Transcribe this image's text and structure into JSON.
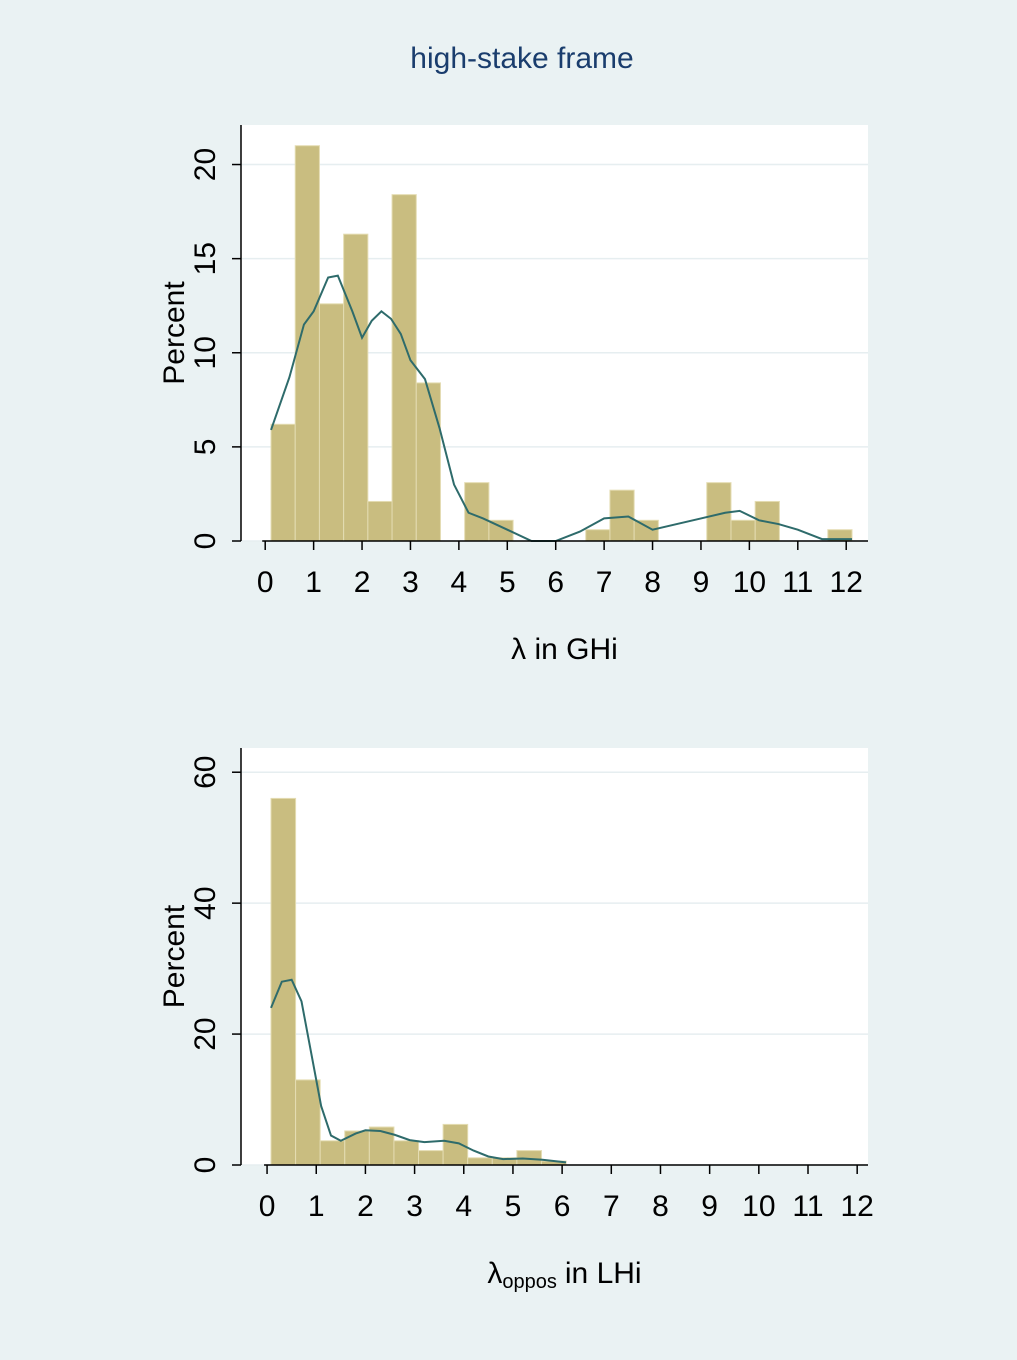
{
  "title": "high-stake frame",
  "chart_data": [
    {
      "type": "histogram",
      "ylabel": "Percent",
      "xlabel": "λ in GHi",
      "bins": [
        0.12,
        0.62,
        1.12,
        1.62,
        2.12,
        2.62,
        3.12,
        3.62,
        4.12,
        4.62,
        5.12,
        5.62,
        6.12,
        6.62,
        7.12,
        7.62,
        8.12,
        8.62,
        9.12,
        9.62,
        10.12,
        10.62,
        11.12,
        11.62,
        12.12
      ],
      "values": [
        6.2,
        21,
        12.6,
        16.3,
        2.1,
        18.4,
        8.4,
        0,
        3.1,
        1.1,
        0,
        0,
        0,
        0.6,
        2.7,
        1.1,
        0,
        0,
        3.1,
        1.1,
        2.1,
        0,
        0,
        0.6
      ],
      "color": "#c9bd80",
      "density": {
        "color": "#2e6b6b",
        "x": [
          0.12,
          0.5,
          0.8,
          1.0,
          1.3,
          1.5,
          1.8,
          2.0,
          2.2,
          2.4,
          2.6,
          2.8,
          3.0,
          3.3,
          3.6,
          3.9,
          4.2,
          4.5,
          5.0,
          5.5,
          6.0,
          6.5,
          7.0,
          7.5,
          8.0,
          8.5,
          9.0,
          9.5,
          9.8,
          10.2,
          10.6,
          11.0,
          11.5,
          12.12
        ],
        "y": [
          5.9,
          8.7,
          11.5,
          12.2,
          14.0,
          14.1,
          12.2,
          10.8,
          11.7,
          12.2,
          11.8,
          11.0,
          9.6,
          8.6,
          6.0,
          3.0,
          1.5,
          1.2,
          0.6,
          0.0,
          0.0,
          0.5,
          1.2,
          1.3,
          0.6,
          0.9,
          1.2,
          1.5,
          1.6,
          1.1,
          0.9,
          0.6,
          0.1,
          0.1
        ]
      },
      "xlim": [
        -0.5,
        12.45
      ],
      "ylim": [
        0,
        22.1
      ],
      "xticks": [
        0,
        1,
        2,
        3,
        4,
        5,
        6,
        7,
        8,
        9,
        10,
        11,
        12
      ],
      "yticks": [
        0,
        5,
        10,
        15,
        20
      ],
      "grid": true
    },
    {
      "type": "histogram",
      "ylabel": "Percent",
      "xlabel": "λ",
      "xlabel_sub": "oppos",
      "xlabel_rest": "in LHi",
      "bins": [
        0.08,
        0.58,
        1.08,
        1.58,
        2.08,
        2.58,
        3.08,
        3.58,
        4.08,
        4.58,
        5.08,
        5.58,
        6.08
      ],
      "values": [
        56,
        13,
        3.7,
        5.2,
        5.8,
        3.7,
        2.2,
        6.2,
        1.1,
        1.1,
        2.2,
        0.6
      ],
      "color": "#c9bd80",
      "density": {
        "color": "#2e6b6b",
        "x": [
          0.08,
          0.3,
          0.5,
          0.7,
          0.9,
          1.1,
          1.3,
          1.5,
          1.8,
          2.0,
          2.3,
          2.6,
          2.9,
          3.2,
          3.6,
          3.9,
          4.2,
          4.5,
          4.8,
          5.2,
          5.6,
          6.08
        ],
        "y": [
          24,
          28,
          28.3,
          25,
          17,
          9,
          4.5,
          3.7,
          4.8,
          5.3,
          5.2,
          4.6,
          3.8,
          3.5,
          3.7,
          3.3,
          2.2,
          1.3,
          0.9,
          1.0,
          0.8,
          0.4
        ]
      },
      "xlim": [
        -0.53,
        12.22
      ],
      "ylim": [
        0,
        63.7
      ],
      "xticks": [
        0,
        1,
        2,
        3,
        4,
        5,
        6,
        7,
        8,
        9,
        10,
        11,
        12
      ],
      "yticks": [
        0,
        20,
        40,
        60
      ],
      "grid": true
    }
  ]
}
